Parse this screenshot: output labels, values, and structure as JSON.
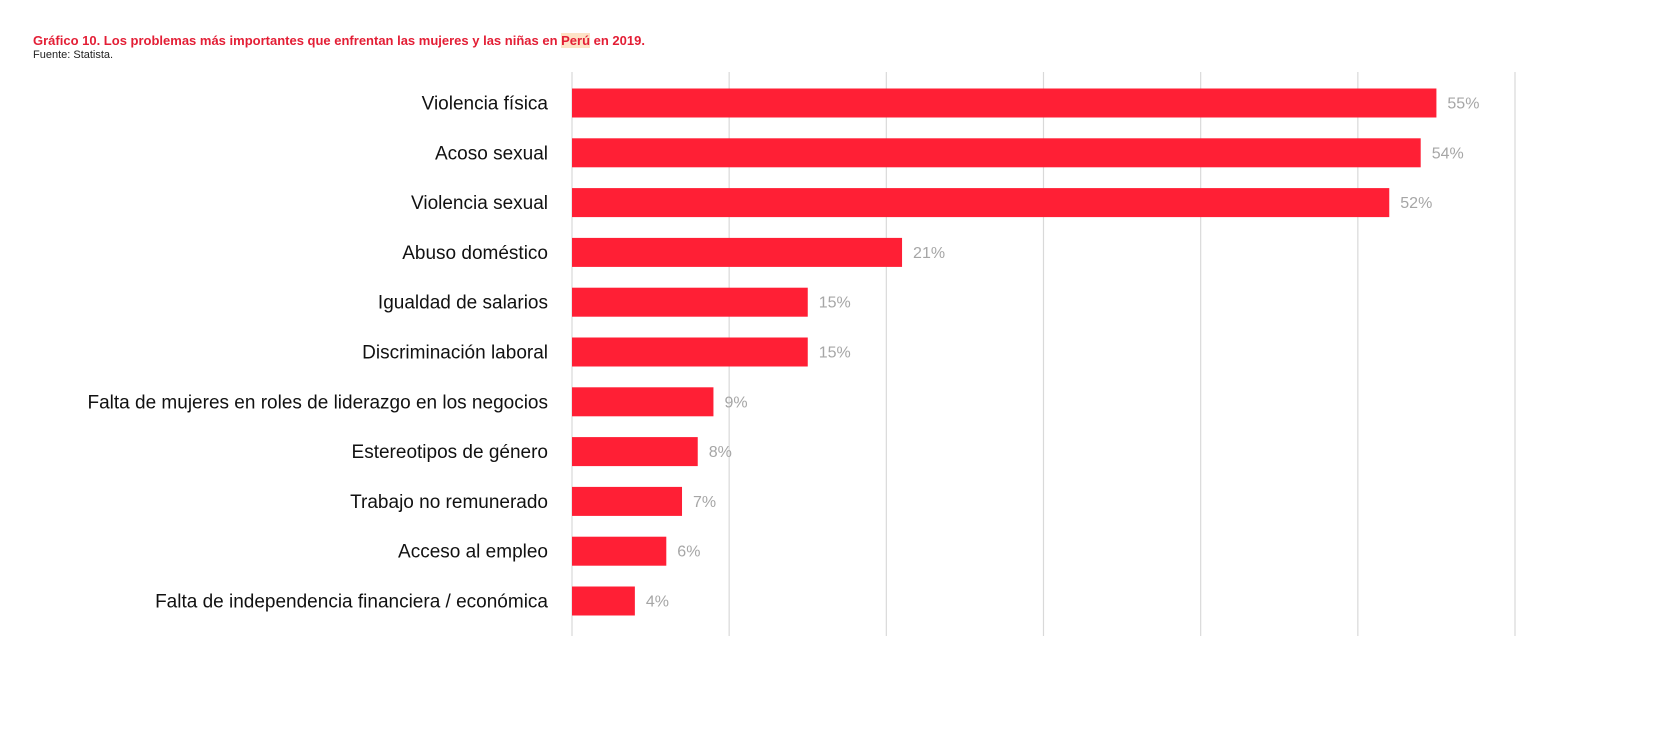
{
  "title": {
    "prefix": "Gráfico 10. Los problemas más importantes que enfrentan las mujeres y las niñas en ",
    "highlight": "Perú",
    "suffix": " en 2019.",
    "source": "Fuente: Statista."
  },
  "colors": {
    "bar": "#ff1f35",
    "title": "#e31e35",
    "grid": "#d9d9d9",
    "value_label": "#a6a6a6"
  },
  "chart_data": {
    "type": "bar",
    "orientation": "horizontal",
    "title": "Gráfico 10. Los problemas más importantes que enfrentan las mujeres y las niñas en Perú en 2019.",
    "source": "Fuente: Statista.",
    "xlabel": "",
    "ylabel": "",
    "xlim": [
      0,
      60
    ],
    "grid": true,
    "value_suffix": "%",
    "categories": [
      "Violencia física",
      "Acoso sexual",
      "Violencia sexual",
      "Abuso doméstico",
      "Igualdad de salarios",
      "Discriminación laboral",
      "Falta de mujeres en roles de liderazgo en los negocios",
      "Estereotipos de género",
      "Trabajo no remunerado",
      "Acceso al empleo",
      "Falta de independencia financiera / económica"
    ],
    "values": [
      55,
      54,
      52,
      21,
      15,
      15,
      9,
      8,
      7,
      6,
      4
    ],
    "value_labels": [
      "55%",
      "54%",
      "52%",
      "21%",
      "15%",
      "15%",
      "9%",
      "8%",
      "7%",
      "6%",
      "4%"
    ]
  }
}
